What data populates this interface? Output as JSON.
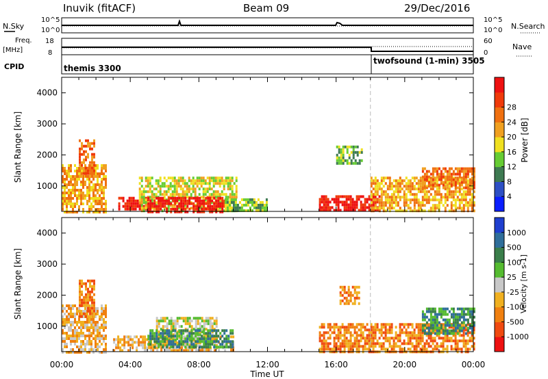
{
  "header": {
    "station": "Inuvik (fitACF)",
    "beam": "Beam 09",
    "date": "29/Dec/2016"
  },
  "noise_panel": {
    "left_label": "N.Sky",
    "right_label": "N.Search",
    "tick_top": "10^5",
    "tick_bottom": "10^0"
  },
  "freq_panel": {
    "left_label_1": "Freq.",
    "left_label_2": "[MHz]",
    "right_label": "Nave",
    "left_ticks": [
      "18",
      "8"
    ],
    "right_ticks": [
      "60",
      "0"
    ]
  },
  "cpid_panel": {
    "label": "CPID",
    "modes": [
      {
        "name": "themis 3300",
        "start_hour": 0
      },
      {
        "name": "twofsound (1-min) 3505",
        "start_hour": 18
      }
    ]
  },
  "chart_data": [
    {
      "type": "heatmap",
      "parameter": "Power",
      "ylabel": "Slant Range [km]",
      "ylim": [
        180,
        4500
      ],
      "yticks": [
        1000,
        2000,
        3000,
        4000
      ],
      "xlim": [
        0,
        24
      ],
      "colorbar": {
        "label": "Power [dB]",
        "ticks": [
          "4",
          "8",
          "12",
          "16",
          "20",
          "24",
          "28"
        ],
        "colors": [
          "#0a1eff",
          "#2d4fc4",
          "#3e7a52",
          "#66cc33",
          "#f0e020",
          "#f0a020",
          "#f07010",
          "#f03a0a",
          "#ee1111"
        ]
      },
      "regions": [
        {
          "t0": 0.0,
          "t1": 2.6,
          "r0": 200,
          "r1": 1700,
          "level": 5
        },
        {
          "t0": 1.0,
          "t1": 1.9,
          "r0": 1300,
          "r1": 2500,
          "level": 6
        },
        {
          "t0": 3.3,
          "t1": 5.0,
          "r0": 250,
          "r1": 650,
          "level": 8
        },
        {
          "t0": 4.5,
          "t1": 10.2,
          "r0": 200,
          "r1": 1300,
          "level": 4
        },
        {
          "t0": 5.0,
          "t1": 9.5,
          "r0": 200,
          "r1": 650,
          "level": 8
        },
        {
          "t0": 9.5,
          "t1": 12.0,
          "r0": 200,
          "r1": 600,
          "level": 3
        },
        {
          "t0": 15.0,
          "t1": 18.5,
          "r0": 200,
          "r1": 700,
          "level": 8
        },
        {
          "t0": 16.0,
          "t1": 17.5,
          "r0": 1700,
          "r1": 2300,
          "level": 3
        },
        {
          "t0": 18.0,
          "t1": 24.0,
          "r0": 200,
          "r1": 1300,
          "level": 5
        },
        {
          "t0": 21.0,
          "t1": 24.0,
          "r0": 900,
          "r1": 1600,
          "level": 6
        }
      ]
    },
    {
      "type": "heatmap",
      "parameter": "Velocity",
      "ylabel": "Slant Range [km]",
      "xlabel": "Time UT",
      "ylim": [
        180,
        4500
      ],
      "yticks": [
        1000,
        2000,
        3000,
        4000
      ],
      "xlim": [
        0,
        24
      ],
      "xticks": [
        "00:00",
        "04:00",
        "08:00",
        "12:00",
        "16:00",
        "20:00",
        "00:00"
      ],
      "colorbar": {
        "label": "Velocity [m s-1]",
        "ticks": [
          "1000",
          "500",
          "100",
          "25",
          "-25",
          "-100",
          "-500",
          "-1000"
        ],
        "colors": [
          "#1f3fcf",
          "#2f6e9a",
          "#3a7e4a",
          "#55bb30",
          "#c8c8c8",
          "#f0b020",
          "#f08010",
          "#f04a10",
          "#ee1111"
        ]
      },
      "regions": [
        {
          "t0": 0.0,
          "t1": 2.6,
          "r0": 200,
          "r1": 1700,
          "level": 5
        },
        {
          "t0": 1.0,
          "t1": 1.9,
          "r0": 1300,
          "r1": 2500,
          "level": 6
        },
        {
          "t0": 3.0,
          "t1": 10.0,
          "r0": 200,
          "r1": 700,
          "level": 5
        },
        {
          "t0": 5.5,
          "t1": 9.0,
          "r0": 400,
          "r1": 1300,
          "level": 4
        },
        {
          "t0": 5.0,
          "t1": 10.0,
          "r0": 300,
          "r1": 900,
          "level": 2
        },
        {
          "t0": 15.0,
          "t1": 24.0,
          "r0": 200,
          "r1": 1100,
          "level": 6
        },
        {
          "t0": 16.2,
          "t1": 17.3,
          "r0": 1700,
          "r1": 2300,
          "level": 6
        },
        {
          "t0": 21.0,
          "t1": 24.0,
          "r0": 800,
          "r1": 1600,
          "level": 2
        }
      ]
    }
  ]
}
